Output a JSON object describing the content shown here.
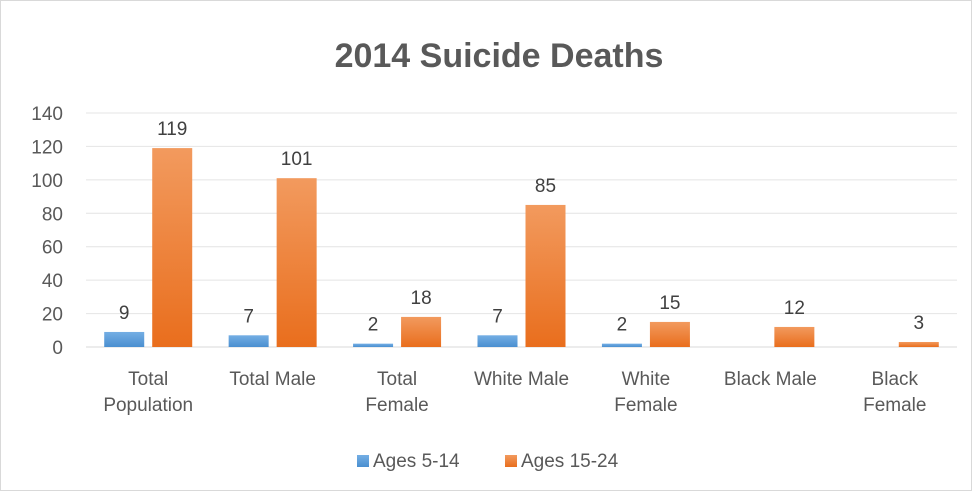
{
  "chart_data": {
    "type": "bar",
    "title": "2014 Suicide Deaths",
    "categories": [
      [
        "Total",
        "Population"
      ],
      [
        "Total Male"
      ],
      [
        "Total",
        "Female"
      ],
      [
        "White Male"
      ],
      [
        "White",
        "Female"
      ],
      [
        "Black Male"
      ],
      [
        "Black",
        "Female"
      ]
    ],
    "series": [
      {
        "name": "Ages 5-14",
        "color": "#5b9bd5",
        "values": [
          9,
          7,
          2,
          7,
          2,
          null,
          null
        ],
        "labels": [
          "9",
          "7",
          "2",
          "7",
          "2",
          "",
          ""
        ]
      },
      {
        "name": "Ages 15-24",
        "color": "#ed7d31",
        "values": [
          119,
          101,
          18,
          85,
          15,
          12,
          3
        ],
        "labels": [
          "119",
          "101",
          "18",
          "85",
          "15",
          "12",
          "3"
        ]
      }
    ],
    "ylim": [
      0,
      140
    ],
    "yticks": [
      0,
      20,
      40,
      60,
      80,
      100,
      120,
      140
    ],
    "grid": true,
    "legend": "bottom",
    "xlabel": "",
    "ylabel": ""
  }
}
